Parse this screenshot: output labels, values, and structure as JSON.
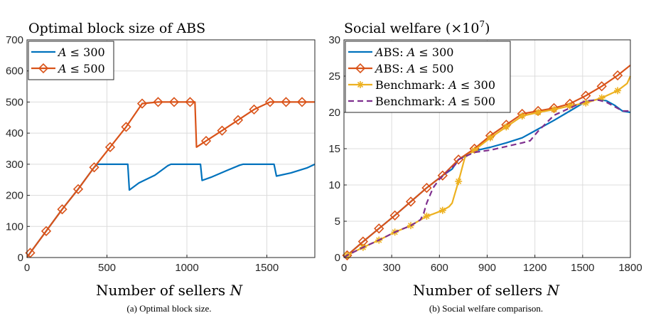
{
  "colors": {
    "blue": "#0072BD",
    "orange": "#D95319",
    "yellow": "#EDB120",
    "purple": "#7E2F8E",
    "grid": "#dcdcdc",
    "axis": "#262626"
  },
  "chart_data": [
    {
      "type": "line",
      "title": "Optimal block size of ABS",
      "xlabel": "Number of sellers N",
      "ylabel": "",
      "caption": "(a) Optimal block size.",
      "xlim": [
        0,
        1800
      ],
      "ylim": [
        0,
        700
      ],
      "xticks": [
        0,
        500,
        1000,
        1500
      ],
      "yticks": [
        0,
        100,
        200,
        300,
        400,
        500,
        600,
        700
      ],
      "grid": true,
      "legend_position": "top-left",
      "series": [
        {
          "name": "A ≤ 300",
          "color": "#0072BD",
          "marker": "none",
          "x": [
            0,
            20,
            120,
            220,
            320,
            420,
            440,
            520,
            620,
            630,
            640,
            700,
            800,
            880,
            900,
            1000,
            1080,
            1085,
            1095,
            1150,
            1250,
            1330,
            1350,
            1450,
            1540,
            1545,
            1560,
            1650,
            1750,
            1800
          ],
          "y": [
            0,
            15,
            85,
            155,
            220,
            290,
            300,
            300,
            300,
            300,
            217,
            240,
            265,
            295,
            300,
            300,
            300,
            300,
            248,
            258,
            280,
            297,
            300,
            300,
            300,
            300,
            262,
            272,
            288,
            300
          ]
        },
        {
          "name": "A ≤ 500",
          "color": "#D95319",
          "marker": "diamond",
          "x": [
            0,
            20,
            120,
            220,
            320,
            420,
            520,
            620,
            720,
            820,
            920,
            1020,
            1050,
            1060,
            1120,
            1220,
            1320,
            1420,
            1520,
            1620,
            1720,
            1800
          ],
          "y": [
            0,
            15,
            85,
            155,
            220,
            290,
            355,
            420,
            495,
            500,
            500,
            500,
            500,
            355,
            375,
            408,
            442,
            476,
            500,
            500,
            500,
            500
          ],
          "marker_x": [
            20,
            120,
            220,
            320,
            420,
            520,
            620,
            720,
            820,
            920,
            1020,
            1120,
            1220,
            1320,
            1420,
            1520,
            1620,
            1720
          ],
          "marker_y": [
            15,
            85,
            155,
            220,
            290,
            355,
            420,
            495,
            500,
            500,
            500,
            375,
            408,
            442,
            476,
            500,
            500,
            500
          ]
        }
      ]
    },
    {
      "type": "line",
      "title": "Social welfare (×10",
      "title_sup": "7",
      "title_end": ")",
      "xlabel": "Number of sellers N",
      "ylabel": "",
      "caption": "(b) Social welfare comparison.",
      "xlim": [
        0,
        1800
      ],
      "ylim": [
        0,
        30
      ],
      "xticks": [
        0,
        300,
        600,
        900,
        1200,
        1500,
        1800
      ],
      "yticks": [
        0,
        5,
        10,
        15,
        20,
        25,
        30
      ],
      "grid": true,
      "legend_position": "top-left",
      "series": [
        {
          "name": "ABS: A ≤ 300",
          "color": "#0072BD",
          "marker": "none",
          "dash": false,
          "x": [
            0,
            20,
            120,
            220,
            320,
            420,
            520,
            620,
            680,
            720,
            820,
            920,
            1020,
            1120,
            1220,
            1320,
            1420,
            1520,
            1600,
            1650,
            1700,
            1750,
            1800
          ],
          "y": [
            0,
            0.3,
            2.2,
            4,
            5.8,
            7.7,
            9.6,
            11.3,
            12.2,
            13.5,
            14.7,
            15.2,
            15.8,
            16.5,
            17.7,
            18.9,
            20.2,
            21.5,
            21.8,
            21.6,
            21,
            20.2,
            20
          ]
        },
        {
          "name": "ABS: A ≤ 500",
          "color": "#D95319",
          "marker": "diamond",
          "dash": false,
          "x": [
            0,
            20,
            120,
            220,
            320,
            420,
            520,
            620,
            720,
            820,
            920,
            1020,
            1120,
            1220,
            1320,
            1420,
            1520,
            1620,
            1720,
            1800
          ],
          "y": [
            0,
            0.3,
            2.2,
            4,
            5.8,
            7.7,
            9.6,
            11.3,
            13.5,
            15,
            16.8,
            18.3,
            19.8,
            20.2,
            20.6,
            21.2,
            22.3,
            23.6,
            25.1,
            26.5
          ],
          "marker_x": [
            20,
            120,
            220,
            320,
            420,
            520,
            620,
            720,
            820,
            920,
            1020,
            1120,
            1220,
            1320,
            1420,
            1520,
            1620,
            1720
          ],
          "marker_y": [
            0.3,
            2.2,
            4,
            5.8,
            7.7,
            9.6,
            11.3,
            13.5,
            15,
            16.8,
            18.3,
            19.8,
            20.2,
            20.6,
            21.2,
            22.3,
            23.6,
            25.1
          ]
        },
        {
          "name": "Benchmark: A ≤ 300",
          "color": "#EDB120",
          "marker": "asterisk",
          "dash": false,
          "x": [
            0,
            20,
            120,
            220,
            320,
            420,
            520,
            560,
            620,
            660,
            680,
            700,
            720,
            760,
            820,
            920,
            1020,
            1120,
            1220,
            1320,
            1420,
            1520,
            1620,
            1720,
            1780,
            1800
          ],
          "y": [
            0,
            0.3,
            1.4,
            2.4,
            3.5,
            4.4,
            5.7,
            6.0,
            6.5,
            7.0,
            7.5,
            9.0,
            10.5,
            13.8,
            14.8,
            16.5,
            18.0,
            19.5,
            20.0,
            20.4,
            20.9,
            21.3,
            22.0,
            23.0,
            24.0,
            25.0
          ],
          "marker_x": [
            20,
            120,
            220,
            320,
            420,
            520,
            620,
            720,
            820,
            920,
            1020,
            1120,
            1220,
            1320,
            1420,
            1520,
            1620,
            1720
          ],
          "marker_y": [
            0.3,
            1.4,
            2.4,
            3.5,
            4.4,
            5.7,
            6.5,
            10.5,
            14.8,
            16.5,
            18.0,
            19.5,
            20.0,
            20.4,
            20.9,
            21.3,
            22.0,
            23.0
          ]
        },
        {
          "name": "Benchmark: A ≤ 500",
          "color": "#7E2F8E",
          "marker": "none",
          "dash": true,
          "x": [
            0,
            20,
            120,
            220,
            320,
            420,
            480,
            500,
            520,
            560,
            600,
            620,
            700,
            720,
            820,
            920,
            1020,
            1120,
            1170,
            1220,
            1320,
            1420,
            1520,
            1600,
            1650,
            1700,
            1750,
            1800
          ],
          "y": [
            0,
            0.3,
            1.4,
            2.4,
            3.5,
            4.4,
            5.2,
            6.0,
            7.5,
            9.6,
            10.8,
            11.2,
            12.8,
            13.5,
            14.5,
            14.8,
            15.3,
            15.8,
            16.1,
            17.4,
            19.6,
            20.6,
            21.6,
            21.7,
            21.4,
            20.8,
            20.2,
            20.2
          ]
        }
      ]
    }
  ]
}
